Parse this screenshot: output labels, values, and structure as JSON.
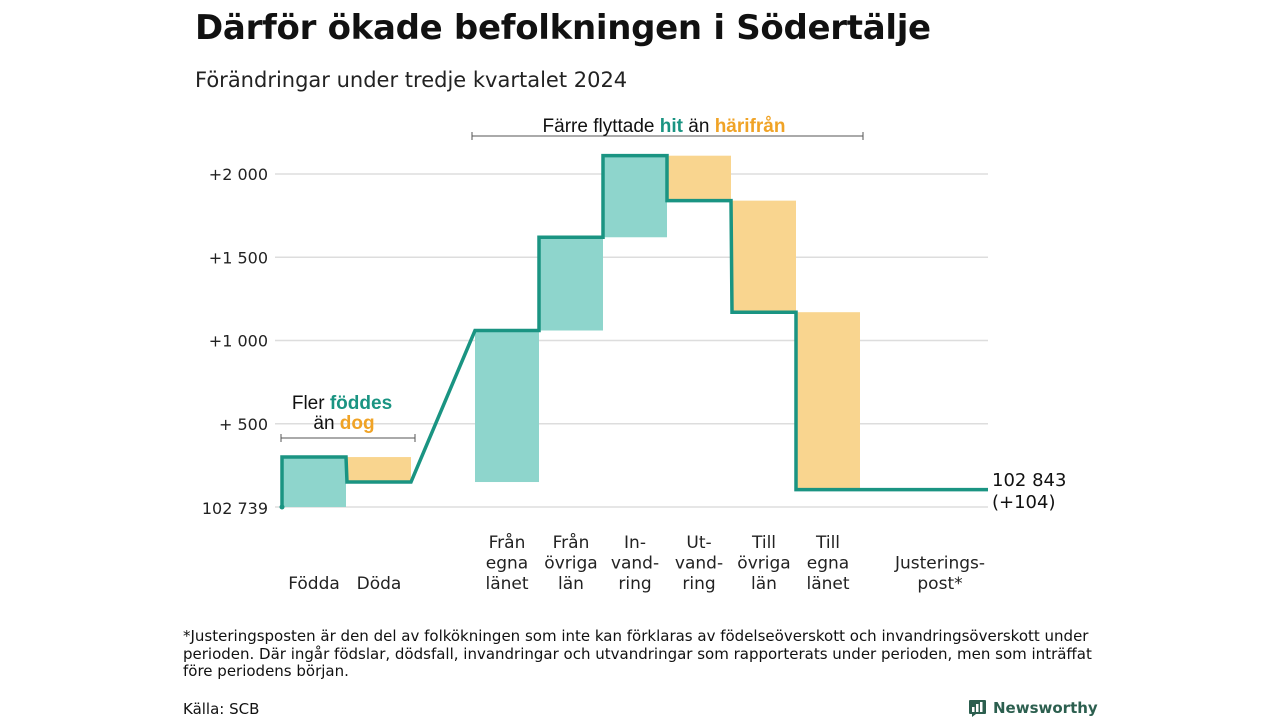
{
  "title": "Därför ökade befolkningen i Södertälje",
  "subtitle": "Förändringar under tredje kvartalet 2024",
  "footnote": "*Justeringsposten är den del av folkökningen som inte kan förklaras av födelseöverskott och invandringsöverskott under perioden. Där ingår födslar, dödsfall, invandringar och utvandringar som rapporterats under perioden, men som inträffat före periodens början.",
  "source": "Källa: SCB",
  "brand": "Newsworthy",
  "colors": {
    "teal_line": "#1a9482",
    "teal_fill": "#8ed5cc",
    "yellow_fill": "#f9d58f",
    "orange_text": "#f0a326",
    "grid": "#dddddd"
  },
  "annotations": {
    "migration": {
      "prefix": "Färre flyttade",
      "hit": "hit",
      "mid": "än",
      "harifran": "härifrån"
    },
    "births": {
      "line1_prefix": "Fler",
      "line1_highlight": "föddes",
      "line2_prefix": "än",
      "line2_highlight": "dog"
    }
  },
  "chart_data": {
    "type": "waterfall",
    "baseline_label": "102 739",
    "yticks": [
      {
        "value": 500,
        "label": "+  500"
      },
      {
        "value": 1000,
        "label": "+1 000"
      },
      {
        "value": 1500,
        "label": "+1 500"
      },
      {
        "value": 2000,
        "label": "+2 000"
      }
    ],
    "ylim": [
      0,
      2100
    ],
    "steps": [
      {
        "label": [
          "Födda"
        ],
        "change": 300,
        "kind": "inflow"
      },
      {
        "label": [
          "Döda"
        ],
        "change": -150,
        "kind": "outflow"
      },
      {
        "label": [
          "Från",
          "egna",
          "länet"
        ],
        "change": 910,
        "kind": "inflow"
      },
      {
        "label": [
          "Från",
          "övriga",
          "län"
        ],
        "change": 560,
        "kind": "inflow"
      },
      {
        "label": [
          "In-",
          "vand-",
          "ring"
        ],
        "change": 490,
        "kind": "inflow"
      },
      {
        "label": [
          "Ut-",
          "vand-",
          "ring"
        ],
        "change": -270,
        "kind": "outflow"
      },
      {
        "label": [
          "Till",
          "övriga",
          "län"
        ],
        "change": -670,
        "kind": "outflow"
      },
      {
        "label": [
          "Till",
          "egna",
          "länet"
        ],
        "change": -1066,
        "kind": "outflow"
      },
      {
        "label": [
          "Justerings-",
          "post*"
        ],
        "change": 0,
        "kind": "adjustment"
      }
    ],
    "end_label": [
      "102 843",
      "(+104)"
    ]
  }
}
